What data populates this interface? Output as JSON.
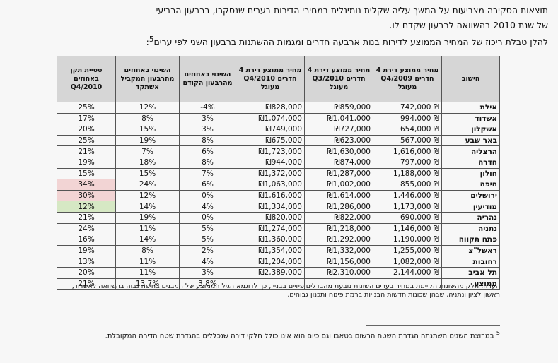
{
  "intro": {
    "line1": "תוצאות הסקירה מצביעות על המשך עליה שקלית נומינלית במחירי הדירות בערים שנסקרו, ברבעון הרביעי",
    "line2": "של שנת 2010 בהשוואה לרבעון שקדם לו.",
    "line3": "להלן טבלת ריכוז של המחיר הממוצע לדירות בנות ארבעה חדרים ומגמות ההשתנות ברבעון השני לפי ערים",
    "line3_sup": "5",
    "line3_end": ":"
  },
  "table": {
    "headers": [
      "הישוב",
      "מחיר ממוצע דירת 4 חדרים Q4/2009 מעוגל",
      "מחיר ממוצע דירת 4 חדרים Q3/2010 מעוגל",
      "מחיר ממוצע דירת 4 חדרים Q4/2010 מעוגל",
      "השינוי באחוזים מהרבעון הקודם",
      "השינוי באחוזים מהרבעון המקביל אשתקד",
      "סטיית תקן באחוזים Q4/2010"
    ],
    "rows": [
      [
        "אילת",
        "742,000 ₪",
        "₪859,000",
        "₪828,000",
        "-4%",
        "12%",
        "25%",
        ""
      ],
      [
        "אשדוד",
        "994,000 ₪",
        "₪1,041,000",
        "₪1,074,000",
        "3%",
        "8%",
        "17%",
        ""
      ],
      [
        "אשקלון",
        "654,000 ₪",
        "₪727,000",
        "₪749,000",
        "3%",
        "15%",
        "20%",
        ""
      ],
      [
        "באר שבע",
        "567,000 ₪",
        "₪623,000",
        "₪675,000",
        "8%",
        "19%",
        "25%",
        ""
      ],
      [
        "הרצליה",
        "1,616,000 ₪",
        "₪1,630,000",
        "₪1,723,000",
        "6%",
        "7%",
        "21%",
        ""
      ],
      [
        "חדרה",
        "797,000 ₪",
        "₪874,000",
        "₪944,000",
        "8%",
        "18%",
        "19%",
        ""
      ],
      [
        "חולון",
        "1,188,000 ₪",
        "₪1,287,000",
        "₪1,372,000",
        "7%",
        "15%",
        "15%",
        ""
      ],
      [
        "חיפה",
        "855,000 ₪",
        "₪1,002,000",
        "₪1,063,000",
        "6%",
        "24%",
        "34%",
        "pink"
      ],
      [
        "ירושלים",
        "1,446,000 ₪",
        "₪1,614,000",
        "₪1,616,000",
        "0%",
        "12%",
        "30%",
        "pink"
      ],
      [
        "מודיעין",
        "1,173,000 ₪",
        "₪1,286,000",
        "₪1,334,000",
        "4%",
        "14%",
        "12%",
        "green"
      ],
      [
        "נהריה",
        "690,000 ₪",
        "₪822,000",
        "₪820,000",
        "0%",
        "19%",
        "21%",
        ""
      ],
      [
        "נתניה",
        "1,146,000 ₪",
        "₪1,218,000",
        "₪1,274,000",
        "5%",
        "11%",
        "24%",
        ""
      ],
      [
        "פתח תקווה",
        "1,190,000 ₪",
        "₪1,292,000",
        "₪1,360,000",
        "5%",
        "14%",
        "16%",
        ""
      ],
      [
        "ראשל\"צ",
        "1,255,000 ₪",
        "₪1,332,000",
        "₪1,354,000",
        "2%",
        "8%",
        "19%",
        ""
      ],
      [
        "רחובות",
        "1,082,000 ₪",
        "₪1,156,000",
        "₪1,204,000",
        "4%",
        "11%",
        "13%",
        ""
      ],
      [
        "תל אביב",
        "2,144,000 ₪",
        "₪2,310,000",
        "₪2,389,000",
        "3%",
        "11%",
        "20%",
        ""
      ]
    ],
    "avg": {
      "city": "ממוצע",
      "q_change": "3.8%",
      "y_change": "13.7%",
      "std": "21%"
    }
  },
  "note": "הערה: חלק מהשונות הקיימת במחיר בערים השונות נובעת מהבדלים פיזיים בבניין, כך לדוגמא הגיל הממוצע של המבנים בחיפה גבוה בהשוואה לאשדוד, ראשון לציון ונתניה, שבהן שכונות חדשות הבנויות ברמת פינוח ותכנון גבוהים.",
  "footnote": {
    "sup": "5",
    "text": "במרוצת השנים השתנתה הגדרת השטח הרשום בטאבו וגם כיום הוא אינו כולל חלקי דירה שנכללים בהגדרת שטח הדירה המקובלת."
  }
}
